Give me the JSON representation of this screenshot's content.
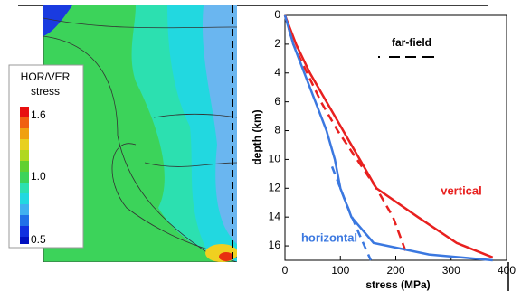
{
  "chart_data": {
    "type": "line",
    "x_label": "stress (MPa)",
    "y_label": "depth (km)",
    "xlim": [
      0,
      400
    ],
    "xticks": [
      0,
      100,
      200,
      300,
      400
    ],
    "ylim": [
      0,
      17
    ],
    "yticks": [
      0,
      2,
      4,
      6,
      8,
      10,
      12,
      14,
      16
    ],
    "y_inverted": true,
    "series": [
      {
        "name": "vertical",
        "color": "#e8201f",
        "dash": false,
        "x": [
          0,
          20,
          45,
          75,
          105,
          135,
          165,
          240,
          310,
          375
        ],
        "values": [
          0,
          2,
          4,
          6,
          8,
          10,
          12,
          14,
          15.8,
          16.8
        ]
      },
      {
        "name": "vertical far-field",
        "color": "#e8201f",
        "dash": true,
        "x": [
          0,
          15,
          40,
          65,
          95,
          130,
          165,
          195,
          220
        ],
        "values": [
          0,
          2,
          4,
          6,
          8,
          10,
          12,
          14,
          16.6
        ]
      },
      {
        "name": "horizontal",
        "color": "#3b78e0",
        "dash": false,
        "x": [
          0,
          15,
          35,
          55,
          75,
          90,
          100,
          120,
          160,
          260,
          375
        ],
        "values": [
          0,
          2,
          4,
          6,
          8,
          10,
          12,
          14,
          15.8,
          16.6,
          17
        ]
      },
      {
        "name": "horizontal far-field",
        "color": "#3b78e0",
        "dash": true,
        "x": [
          85,
          110,
          132,
          155
        ],
        "values": [
          10.5,
          13,
          15,
          17
        ]
      }
    ],
    "annotations": {
      "vertical": "vertical",
      "horizontal": "horizontal",
      "far_field": "far-field"
    }
  },
  "left_panel": {
    "legend_title": [
      "HOR/VER",
      "stress"
    ],
    "colorbar_labels": [
      "1.6",
      "1.0",
      "0.5"
    ]
  }
}
